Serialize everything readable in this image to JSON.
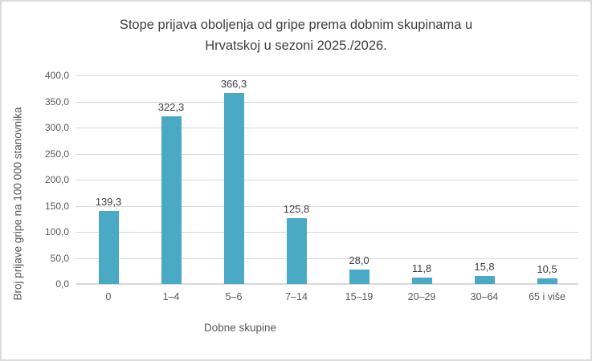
{
  "chart_data": {
    "type": "bar",
    "title": "Stope prijava oboljenja od gripe prema dobnim skupinama u Hrvatskoj u sezoni 2025./2026.",
    "title_lines": [
      "Stope prijava oboljenja od gripe prema dobnim skupinama u",
      "Hrvatskoj u sezoni 2025./2026."
    ],
    "xlabel": "Dobne skupine",
    "ylabel": "Broj prijave gripe na 100 000 stanovnika",
    "categories": [
      "0",
      "1–4",
      "5–6",
      "7–14",
      "15–19",
      "20–29",
      "30–64",
      "65 i više"
    ],
    "values": [
      139.3,
      322.3,
      366.3,
      125.8,
      28.0,
      11.8,
      15.8,
      10.5
    ],
    "data_labels": [
      "139,3",
      "322,3",
      "366,3",
      "125,8",
      "28,0",
      "11,8",
      "15,8",
      "10,5"
    ],
    "ylim": [
      0,
      400
    ],
    "ytick_step": 50,
    "ytick_values": [
      0,
      50,
      100,
      150,
      200,
      250,
      300,
      350,
      400
    ],
    "ytick_labels": [
      "0,0",
      "50,0",
      "100,0",
      "150,0",
      "200,0",
      "250,0",
      "300,0",
      "350,0",
      "400,0"
    ],
    "grid": true,
    "legend": "none",
    "colors": {
      "bar": "#4AA9C4",
      "gridline": "#D9D9D9",
      "tick_text": "#595959",
      "title_text": "#3F3F3F",
      "data_label_text": "#404040",
      "frame_border": "#DBDBDB"
    }
  }
}
